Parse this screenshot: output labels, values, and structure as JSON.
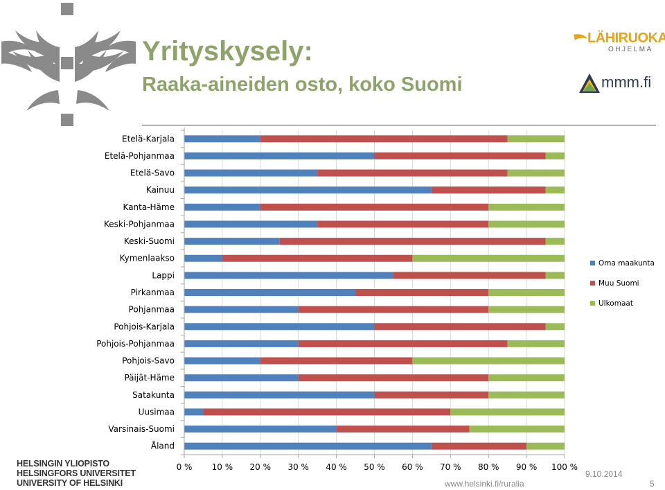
{
  "slide": {
    "title_line1": "Yrityskysely:",
    "title_line2": "Raaka-aineiden osto, koko Suomi",
    "logo_lahiruoka_main": "LÄHIRUOKA-",
    "logo_lahiruoka_sub": "OHJELMA",
    "logo_mmm": "mmm.fi",
    "university_lines": [
      "HELSINGIN YLIOPISTO",
      "HELSINGFORS UNIVERSITET",
      "UNIVERSITY OF HELSINKI"
    ],
    "date": "9.10.2014",
    "url": "www.helsinki.fi/ruralia",
    "page_number": "5",
    "colors": {
      "title": "#8da36a",
      "oma": "#4f81bd",
      "muu": "#c0504d",
      "ulkomaat": "#9bbb59"
    }
  },
  "chart_data": {
    "type": "bar",
    "orientation": "horizontal",
    "stacked": "percent",
    "title": "",
    "xlabel": "",
    "ylabel": "",
    "xlim": [
      0,
      100
    ],
    "ticks": [
      "0 %",
      "10 %",
      "20 %",
      "30 %",
      "40 %",
      "50 %",
      "60 %",
      "70 %",
      "80 %",
      "90 %",
      "100 %"
    ],
    "grid": true,
    "legend_position": "right",
    "categories": [
      "Etelä-Karjala",
      "Etelä-Pohjanmaa",
      "Etelä-Savo",
      "Kainuu",
      "Kanta-Häme",
      "Keski-Pohjanmaa",
      "Keski-Suomi",
      "Kymenlaakso",
      "Lappi",
      "Pirkanmaa",
      "Pohjanmaa",
      "Pohjois-Karjala",
      "Pohjois-Pohjanmaa",
      "Pohjois-Savo",
      "Päijät-Häme",
      "Satakunta",
      "Uusimaa",
      "Varsinais-Suomi",
      "Åland"
    ],
    "series": [
      {
        "name": "Oma maakunta",
        "color": "#4f81bd",
        "values": [
          20,
          50,
          35,
          65,
          20,
          35,
          25,
          10,
          55,
          45,
          30,
          50,
          30,
          20,
          30,
          50,
          5,
          40,
          65
        ]
      },
      {
        "name": "Muu Suomi",
        "color": "#c0504d",
        "values": [
          65,
          45,
          50,
          30,
          60,
          45,
          70,
          50,
          40,
          35,
          50,
          45,
          55,
          40,
          50,
          30,
          65,
          35,
          25
        ]
      },
      {
        "name": "Ulkomaat",
        "color": "#9bbb59",
        "values": [
          15,
          5,
          15,
          5,
          20,
          20,
          5,
          40,
          5,
          20,
          20,
          5,
          15,
          40,
          20,
          20,
          30,
          25,
          10
        ]
      }
    ]
  }
}
